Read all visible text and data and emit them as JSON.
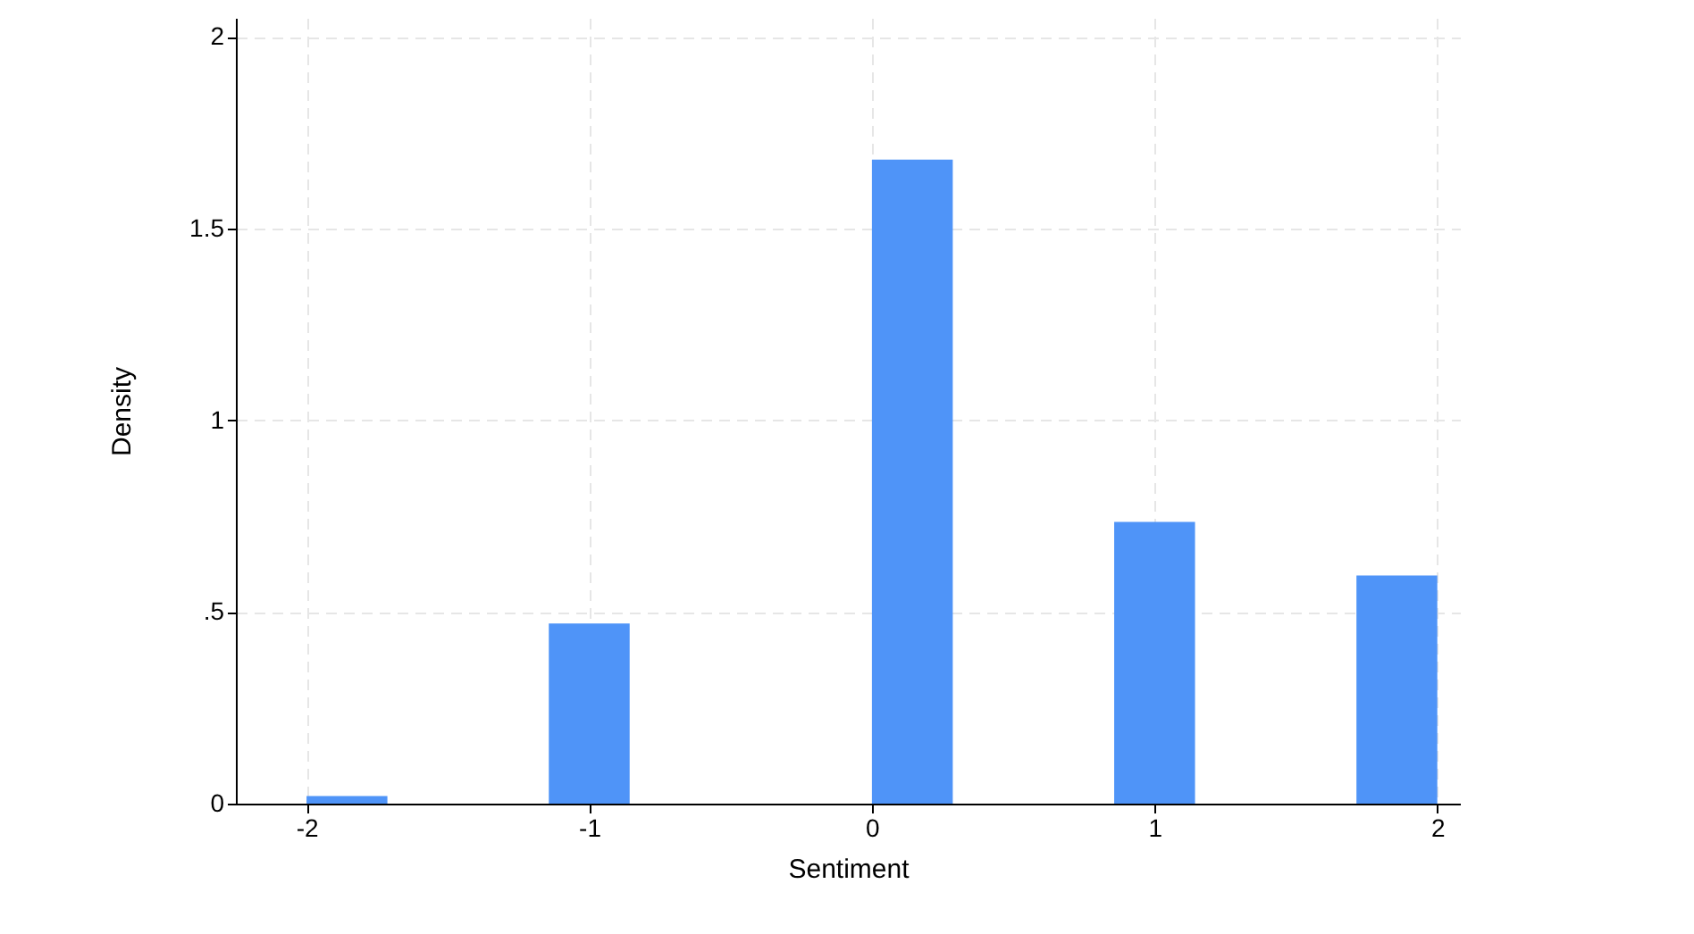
{
  "chart_data": {
    "type": "histogram",
    "xlabel": "Sentiment",
    "ylabel": "Density",
    "bins": [
      -2,
      -1.714,
      -1.429,
      -1.143,
      -0.857,
      -0.571,
      -0.286,
      0,
      0.286,
      0.571,
      0.857,
      1.143,
      1.429,
      1.714,
      2
    ],
    "values": [
      0.02,
      0,
      0,
      0.47,
      0,
      0,
      0,
      1.68,
      0,
      0,
      0.735,
      0,
      0,
      0.595
    ],
    "color": "#4f94f8",
    "xlim": [
      -2.25,
      2.08
    ],
    "xticks": [
      -2,
      -1,
      0,
      1,
      2
    ],
    "ylim": [
      0,
      2.05
    ],
    "yticks": [
      0,
      {
        "value": 0.5,
        "label": ".5"
      },
      1,
      1.5,
      2
    ],
    "grid": true
  }
}
